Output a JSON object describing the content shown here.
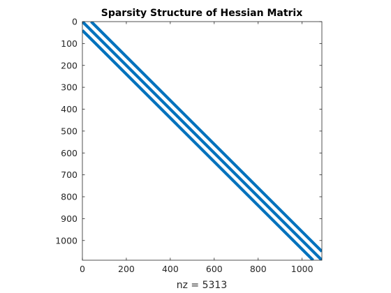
{
  "chart_data": {
    "type": "spy",
    "title": "Sparsity Structure of Hessian Matrix",
    "xlabel": "nz = 5313",
    "ylabel": "",
    "xlim": [
      0,
      1090
    ],
    "ylim": [
      0,
      1090
    ],
    "y_reversed": true,
    "x_ticks": [
      0,
      200,
      400,
      600,
      800,
      1000
    ],
    "y_ticks": [
      0,
      100,
      200,
      300,
      400,
      500,
      600,
      700,
      800,
      900,
      1000
    ],
    "grid": false,
    "marker_color": "#0072BD",
    "series": [
      {
        "start": [
          0,
          0
        ],
        "end": [
          1090,
          1090
        ]
      },
      {
        "start": [
          40,
          0
        ],
        "end": [
          1090,
          1050
        ]
      },
      {
        "start": [
          0,
          40
        ],
        "end": [
          1050,
          1090
        ]
      }
    ]
  }
}
